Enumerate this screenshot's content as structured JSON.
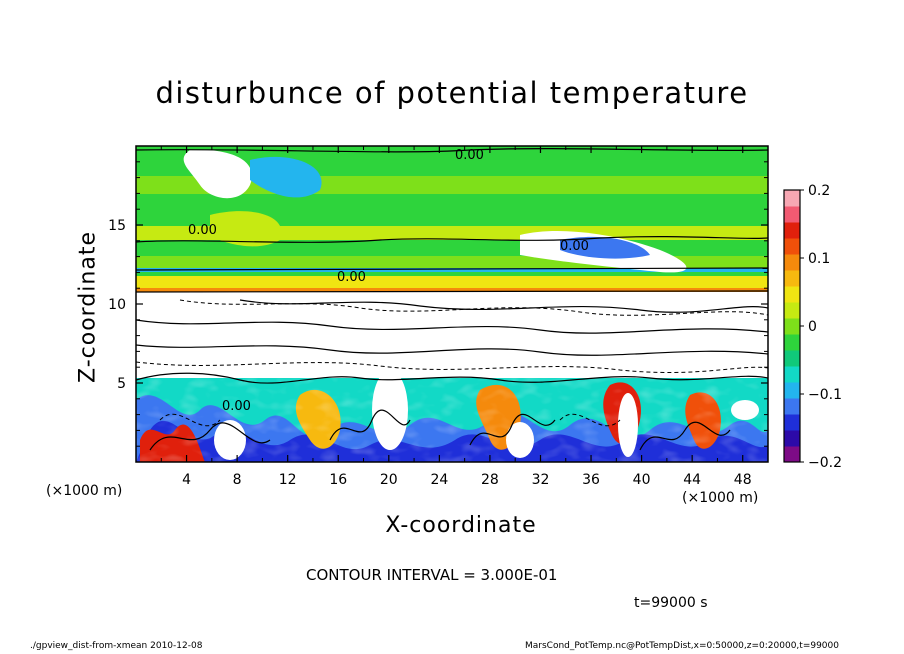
{
  "chart_data": {
    "type": "heatmap",
    "title": "disturbunce of potential temperature",
    "xlabel": "X-coordinate",
    "ylabel": "Z-coordinate",
    "x_unit": "(×1000 m)",
    "xlim": [
      0,
      50
    ],
    "ylim": [
      0,
      20
    ],
    "x_ticks": [
      4,
      8,
      12,
      16,
      20,
      24,
      28,
      32,
      36,
      40,
      44,
      48
    ],
    "y_ticks": [
      5,
      10,
      15
    ],
    "colorbar": {
      "ticks": [
        0.2,
        0.1,
        0,
        -0.1,
        -0.2
      ],
      "tick_labels": [
        "0.2",
        "0.1",
        "0",
        "−0.1",
        "−0.2"
      ],
      "range": [
        -0.2,
        0.2
      ],
      "colors": [
        "#7d0b86",
        "#2c0aa8",
        "#1f2fd9",
        "#3c77f0",
        "#23b5ee",
        "#12d9c6",
        "#10c97a",
        "#2ed43c",
        "#7ee01a",
        "#c6ea12",
        "#f0e512",
        "#f7b90f",
        "#f58a0c",
        "#f0500a",
        "#e0200c",
        "#f25a72",
        "#f7a7b3"
      ]
    },
    "contour_labels": [
      "0.00",
      "0.00",
      "0.00",
      "0.00",
      "0.00"
    ],
    "contour_interval_text": "CONTOUR INTERVAL = 3.000E-01",
    "time_text": "t=99000 s"
  },
  "footer": {
    "left": "./gpview_dist-from-xmean   2010-12-08",
    "right": "MarsCond_PotTemp.nc@PotTempDist,x=0:50000,z=0:20000,t=99000"
  }
}
